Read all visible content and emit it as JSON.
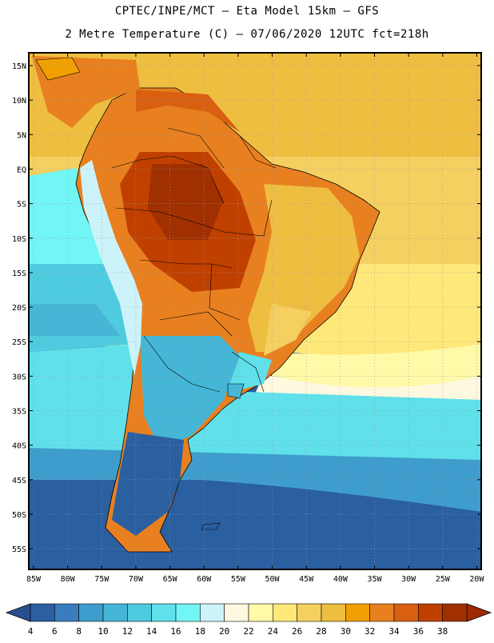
{
  "title_line1": "CPTEC/INPE/MCT –  Eta Model 15km – GFS",
  "title_line2": "2 Metre Temperature (C) – 07/06/2020 12UTC fct=218h",
  "lat_labels": [
    "15N",
    "10N",
    "5N",
    "EQ",
    "5S",
    "10S",
    "15S",
    "20S",
    "25S",
    "30S",
    "35S",
    "40S",
    "45S",
    "50S",
    "55S"
  ],
  "lon_labels": [
    "85W",
    "80W",
    "75W",
    "70W",
    "65W",
    "60W",
    "55W",
    "50W",
    "45W",
    "40W",
    "35W",
    "30W",
    "25W",
    "20W"
  ],
  "colorbar": {
    "labels": [
      "4",
      "6",
      "8",
      "10",
      "12",
      "14",
      "16",
      "18",
      "20",
      "22",
      "24",
      "26",
      "28",
      "30",
      "32",
      "34",
      "36",
      "38"
    ],
    "colors": [
      "#2a5fa0",
      "#3a7dbd",
      "#3e9dcc",
      "#45b6d6",
      "#4fcbe0",
      "#5fe0ea",
      "#72f5f5",
      "#cdf3fa",
      "#fff8e0",
      "#fff9a8",
      "#ffe87a",
      "#f5d060",
      "#eebe40",
      "#f0a000",
      "#e88020",
      "#d86010",
      "#c04000",
      "#a03000"
    ],
    "arrow_low_color": "#2a4f90",
    "arrow_high_color": "#a02a00"
  }
}
